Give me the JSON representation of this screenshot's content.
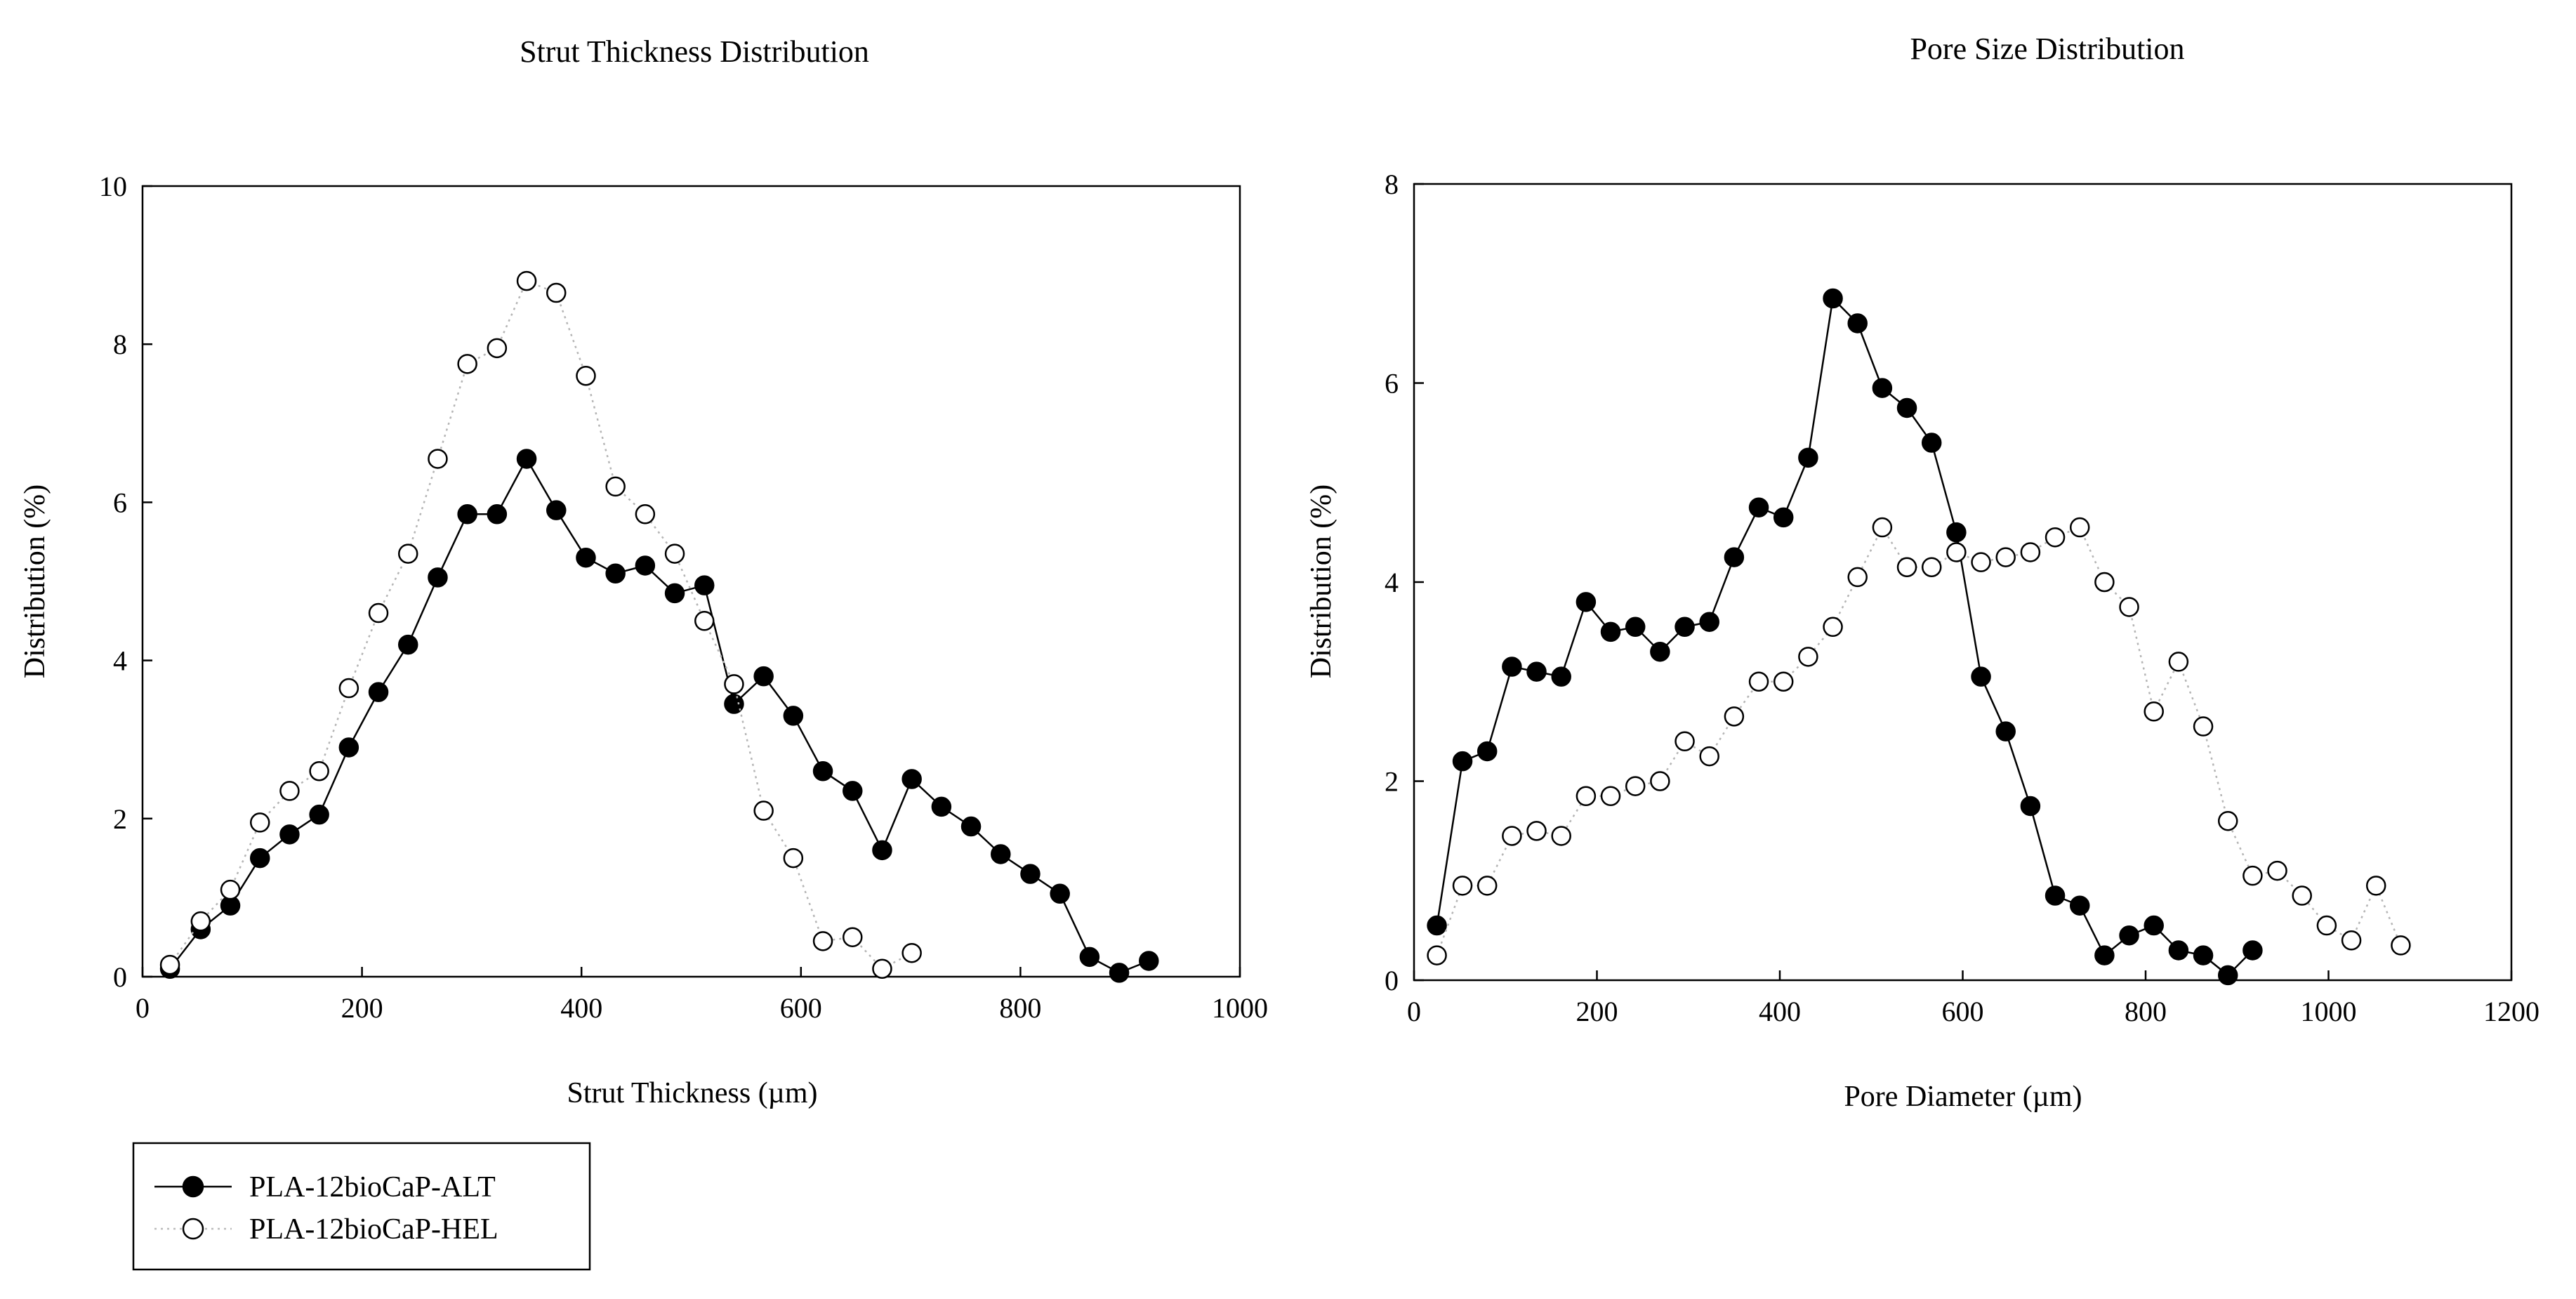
{
  "chart_data": [
    {
      "type": "line",
      "title": "Strut Thickness Distribution",
      "xlabel": "Strut Thickness (µm)",
      "ylabel": "Distribution (%)",
      "xlim": [
        0,
        1000
      ],
      "ylim": [
        0,
        10
      ],
      "xticks": [
        0,
        200,
        400,
        600,
        800,
        1000
      ],
      "yticks": [
        0,
        2,
        4,
        6,
        8,
        10
      ],
      "grid": false,
      "series": [
        {
          "name": "PLA-12bioCaP-ALT",
          "marker": "filled-circle",
          "line": "solid",
          "x": [
            25,
            53,
            80,
            107,
            134,
            161,
            188,
            215,
            242,
            269,
            296,
            323,
            350,
            377,
            404,
            431,
            458,
            485,
            512,
            539,
            566,
            593,
            620,
            647,
            674,
            701,
            728,
            755,
            782,
            809,
            836,
            863,
            890,
            917
          ],
          "y": [
            0.1,
            0.6,
            0.9,
            1.5,
            1.8,
            2.05,
            2.9,
            3.6,
            4.2,
            5.05,
            5.85,
            5.85,
            6.55,
            5.9,
            5.3,
            5.1,
            5.2,
            4.85,
            4.95,
            3.45,
            3.8,
            3.3,
            2.6,
            2.35,
            1.6,
            2.5,
            2.15,
            1.9,
            1.55,
            1.3,
            1.05,
            0.25,
            0.05,
            0.2
          ]
        },
        {
          "name": "PLA-12bioCaP-HEL",
          "marker": "open-circle",
          "line": "dotted",
          "x": [
            25,
            53,
            80,
            107,
            134,
            161,
            188,
            215,
            242,
            269,
            296,
            323,
            350,
            377,
            404,
            431,
            458,
            485,
            512,
            539,
            566,
            593,
            620,
            647,
            674,
            701
          ],
          "y": [
            0.15,
            0.7,
            1.1,
            1.95,
            2.35,
            2.6,
            3.65,
            4.6,
            5.35,
            6.55,
            7.75,
            7.95,
            8.8,
            8.65,
            7.6,
            6.2,
            5.85,
            5.35,
            4.5,
            3.7,
            2.1,
            1.5,
            0.45,
            0.5,
            0.1,
            0.3
          ]
        }
      ]
    },
    {
      "type": "line",
      "title": "Pore Size Distribution",
      "xlabel": "Pore Diameter (µm)",
      "ylabel": "Distribution (%)",
      "xlim": [
        0,
        1200
      ],
      "ylim": [
        0,
        8
      ],
      "xticks": [
        0,
        200,
        400,
        600,
        800,
        1000,
        1200
      ],
      "yticks": [
        0,
        2,
        4,
        6,
        8
      ],
      "grid": false,
      "series": [
        {
          "name": "PLA-12bioCaP-ALT",
          "marker": "filled-circle",
          "line": "solid",
          "x": [
            25,
            53,
            80,
            107,
            134,
            161,
            188,
            215,
            242,
            269,
            296,
            323,
            350,
            377,
            404,
            431,
            458,
            485,
            512,
            539,
            566,
            593,
            620,
            647,
            674,
            701,
            728,
            755,
            782,
            809,
            836,
            863,
            890,
            917
          ],
          "y": [
            0.55,
            2.2,
            2.3,
            3.15,
            3.1,
            3.05,
            3.8,
            3.5,
            3.55,
            3.3,
            3.55,
            3.6,
            4.25,
            4.75,
            4.65,
            5.25,
            6.85,
            6.6,
            5.95,
            5.75,
            5.4,
            4.5,
            3.05,
            2.5,
            1.75,
            0.85,
            0.75,
            0.25,
            0.45,
            0.55,
            0.3,
            0.25,
            0.05,
            0.3
          ]
        },
        {
          "name": "PLA-12bioCaP-HEL",
          "marker": "open-circle",
          "line": "dotted",
          "x": [
            25,
            53,
            80,
            107,
            134,
            161,
            188,
            215,
            242,
            269,
            296,
            323,
            350,
            377,
            404,
            431,
            458,
            485,
            512,
            539,
            566,
            593,
            620,
            647,
            674,
            701,
            728,
            755,
            782,
            809,
            836,
            863,
            890,
            917,
            944,
            971,
            998,
            1025,
            1052,
            1079
          ],
          "y": [
            0.25,
            0.95,
            0.95,
            1.45,
            1.5,
            1.45,
            1.85,
            1.85,
            1.95,
            2.0,
            2.4,
            2.25,
            2.65,
            3.0,
            3.0,
            3.25,
            3.55,
            4.05,
            4.55,
            4.15,
            4.15,
            4.3,
            4.2,
            4.25,
            4.3,
            4.45,
            4.55,
            4.0,
            3.75,
            2.7,
            3.2,
            2.55,
            1.6,
            1.05,
            1.1,
            0.85,
            0.55,
            0.4,
            0.95,
            0.35
          ]
        }
      ]
    }
  ],
  "legend": {
    "placement": "bottom-left",
    "items": [
      {
        "label": "PLA-12bioCaP-ALT",
        "marker": "filled-circle",
        "line": "solid"
      },
      {
        "label": "PLA-12bioCaP-HEL",
        "marker": "open-circle",
        "line": "dotted"
      }
    ]
  }
}
